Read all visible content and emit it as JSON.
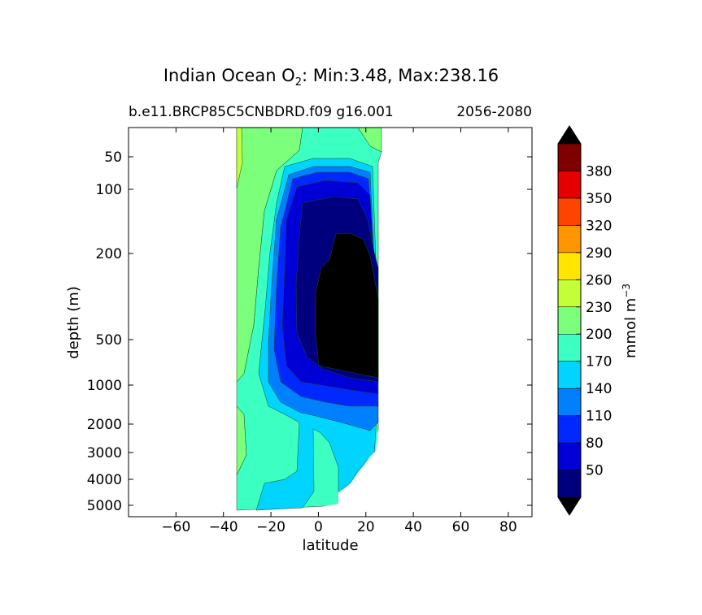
{
  "chart_data": {
    "type": "heatmap",
    "title_prefix": "Indian Ocean O",
    "title_subscript": "2",
    "title_suffix": ": Min:3.48, Max:238.16",
    "subtitle_left": "b.e11.BRCP85C5CNBDRD.f09 g16.001",
    "subtitle_right": "2056-2080",
    "xlabel": "latitude",
    "ylabel": "depth (m)",
    "xlim": [
      -80,
      90
    ],
    "x_ticks": [
      -60,
      -40,
      -20,
      0,
      20,
      40,
      60,
      80
    ],
    "y_scale": "symlog (inverted depth)",
    "y_ticks": [
      50,
      100,
      200,
      500,
      1000,
      2000,
      3000,
      4000,
      5000
    ],
    "colorbar": {
      "label": "mmol m",
      "label_superscript": "−3",
      "levels": [
        20,
        50,
        80,
        110,
        140,
        170,
        200,
        230,
        260,
        290,
        320,
        350,
        380,
        410
      ],
      "tick_labels": [
        "50",
        "80",
        "110",
        "140",
        "170",
        "200",
        "230",
        "260",
        "290",
        "320",
        "350",
        "380"
      ],
      "colors": [
        "#00007f",
        "#0000d6",
        "#0028ff",
        "#0080ff",
        "#00d4ff",
        "#3cffc2",
        "#7cff7a",
        "#c2ff36",
        "#ffe500",
        "#ff9600",
        "#ff4400",
        "#e40000",
        "#7f0000"
      ],
      "under_color": "#000000",
      "over_color": "#000000"
    },
    "data_extent": {
      "lat_min": -35,
      "lat_max": 25,
      "min_value": 3.48,
      "max_value": 238.16
    },
    "regions": [
      {
        "level": "200-230",
        "color": "#7cff7a",
        "description": "southern upper ocean band"
      },
      {
        "level": "230-260",
        "color": "#c2ff36",
        "description": "far-south surface sliver"
      },
      {
        "level": "170-200",
        "color": "#3cffc2",
        "description": "intermediate and deep waters"
      },
      {
        "level": "140-170",
        "color": "#00d4ff",
        "description": "deep northern and abyssal waters"
      },
      {
        "level": "110-140",
        "color": "#0080ff",
        "description": "oxycline shell"
      },
      {
        "level": "80-110",
        "color": "#0028ff",
        "description": "oxycline shell"
      },
      {
        "level": "50-80",
        "color": "#0000d6",
        "description": "low-oxygen shell"
      },
      {
        "level": "20-50",
        "color": "#00007f",
        "description": "near-suboxic shell"
      },
      {
        "level": "<20",
        "color": "#000000",
        "description": "oxygen minimum zone core, ~5–25N, 170–900 m"
      }
    ]
  }
}
